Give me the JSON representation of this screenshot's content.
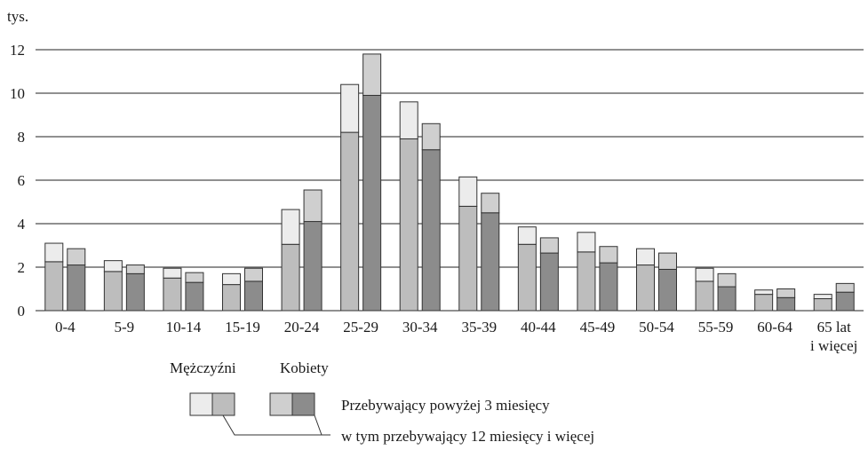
{
  "chart_data": {
    "type": "bar",
    "y_unit_label": "tys.",
    "ylim": [
      0,
      12
    ],
    "y_ticks": [
      "0",
      "2",
      "4",
      "6",
      "8",
      "10",
      "12"
    ],
    "grid": true,
    "categories": [
      [
        "0-4"
      ],
      [
        "5-9"
      ],
      [
        "10-14"
      ],
      [
        "15-19"
      ],
      [
        "20-24"
      ],
      [
        "25-29"
      ],
      [
        "30-34"
      ],
      [
        "35-39"
      ],
      [
        "40-44"
      ],
      [
        "45-49"
      ],
      [
        "50-54"
      ],
      [
        "55-59"
      ],
      [
        "60-64"
      ],
      [
        "65 lat",
        "i więcej"
      ]
    ],
    "series": [
      {
        "name": "Mężczyźni",
        "total": [
          3.1,
          2.3,
          1.95,
          1.7,
          4.65,
          10.4,
          9.6,
          6.15,
          3.85,
          3.6,
          2.85,
          1.95,
          0.95,
          0.75
        ],
        "of_which_12m": [
          2.25,
          1.8,
          1.5,
          1.2,
          3.05,
          8.2,
          7.9,
          4.8,
          3.05,
          2.7,
          2.1,
          1.35,
          0.75,
          0.55
        ],
        "colors": {
          "upper": "#ececec",
          "lower": "#bdbdbd"
        }
      },
      {
        "name": "Kobiety",
        "total": [
          2.85,
          2.1,
          1.75,
          1.95,
          5.55,
          11.8,
          8.6,
          5.4,
          3.35,
          2.95,
          2.65,
          1.7,
          1.0,
          1.25
        ],
        "of_which_12m": [
          2.1,
          1.7,
          1.3,
          1.35,
          4.1,
          9.9,
          7.4,
          4.5,
          2.65,
          2.2,
          1.9,
          1.1,
          0.6,
          0.85
        ],
        "colors": {
          "upper": "#cfcfcf",
          "lower": "#8c8c8c"
        }
      }
    ],
    "legend": {
      "header_men": "Mężczyźni",
      "header_women": "Kobiety",
      "label_total": "Przebywający powyżej 3 miesięcy",
      "label_12m": "w tym przebywający 12 miesięcy i więcej"
    }
  }
}
